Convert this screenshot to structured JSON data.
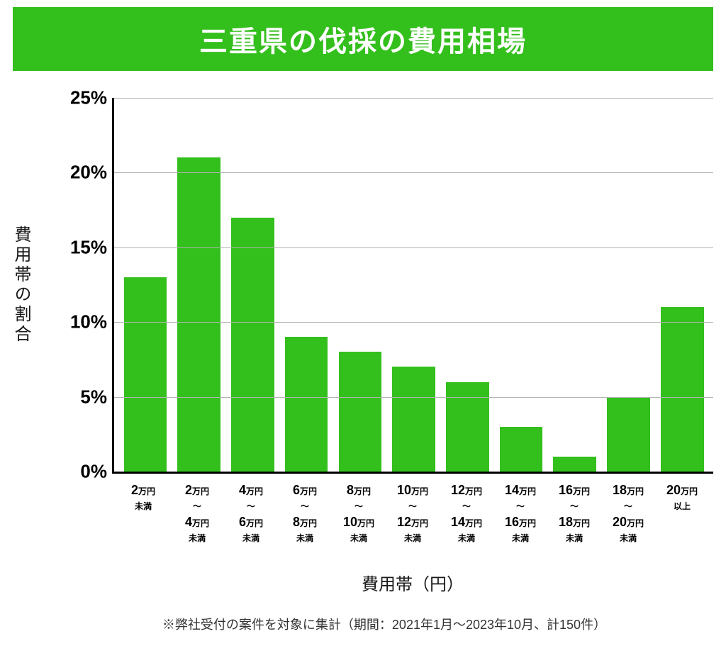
{
  "title": "三重県の伐採の費用相場",
  "title_style": {
    "bg_color": "#33bf1c",
    "text_color": "#ffffff",
    "fontsize": 40,
    "padding_v": 16
  },
  "chart": {
    "type": "bar",
    "bar_color": "#33bf1c",
    "grid_color": "#b3b3b3",
    "axis_color": "#000000",
    "background_color": "#ffffff",
    "bar_width": 0.8,
    "ylim": [
      0,
      25
    ],
    "ytick_step": 5,
    "yticks": [
      "0%",
      "5%",
      "10%",
      "15%",
      "20%",
      "25%"
    ],
    "ylabel": "費用帯の割合",
    "ylabel_fontsize": 24,
    "xlabel": "費用帯（円）",
    "xlabel_fontsize": 24,
    "tick_fontsize": 26,
    "categories": [
      {
        "l1": "2",
        "unit1": "万円",
        "l2": "未満",
        "l3": "",
        "l3u": "",
        "l4": ""
      },
      {
        "l1": "2",
        "unit1": "万円",
        "l2": "〜",
        "l3": "4",
        "l3u": "万円",
        "l4": "未満"
      },
      {
        "l1": "4",
        "unit1": "万円",
        "l2": "〜",
        "l3": "6",
        "l3u": "万円",
        "l4": "未満"
      },
      {
        "l1": "6",
        "unit1": "万円",
        "l2": "〜",
        "l3": "8",
        "l3u": "万円",
        "l4": "未満"
      },
      {
        "l1": "8",
        "unit1": "万円",
        "l2": "〜",
        "l3": "10",
        "l3u": "万円",
        "l4": "未満"
      },
      {
        "l1": "10",
        "unit1": "万円",
        "l2": "〜",
        "l3": "12",
        "l3u": "万円",
        "l4": "未満"
      },
      {
        "l1": "12",
        "unit1": "万円",
        "l2": "〜",
        "l3": "14",
        "l3u": "万円",
        "l4": "未満"
      },
      {
        "l1": "14",
        "unit1": "万円",
        "l2": "〜",
        "l3": "16",
        "l3u": "万円",
        "l4": "未満"
      },
      {
        "l1": "16",
        "unit1": "万円",
        "l2": "〜",
        "l3": "18",
        "l3u": "万円",
        "l4": "未満"
      },
      {
        "l1": "18",
        "unit1": "万円",
        "l2": "〜",
        "l3": "20",
        "l3u": "万円",
        "l4": "未満"
      },
      {
        "l1": "20",
        "unit1": "万円",
        "l2": "以上",
        "l3": "",
        "l3u": "",
        "l4": ""
      }
    ],
    "values": [
      13,
      21,
      17,
      9,
      8,
      7,
      6,
      3,
      1,
      5,
      11
    ]
  },
  "footnote": "※弊社受付の案件を対象に集計（期間：2021年1月～2023年10月、計150件）"
}
